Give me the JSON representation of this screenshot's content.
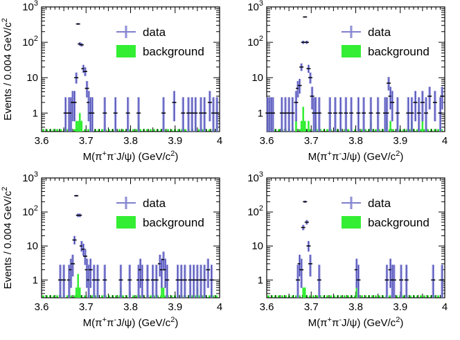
{
  "figure": {
    "colors": {
      "data": "#3333aa",
      "data_error_band": "#9999dd",
      "background": "#33ee33",
      "axis": "#000000"
    }
  },
  "chart_data": [
    {
      "type": "scatter",
      "panel": "top-left",
      "xlabel": "M(π⁺π⁻J/ψ) (GeV/c²)",
      "ylabel": "Events / 0.004 GeV/c²",
      "xlim": [
        3.6,
        4.0
      ],
      "ylim": [
        0.3,
        1000
      ],
      "yscale": "log",
      "grid": false,
      "legend_position": "top-right",
      "xticks": [
        "3.6",
        "3.7",
        "3.8",
        "3.9",
        "4"
      ],
      "yticks": [
        "1",
        "10",
        "10²",
        "10³"
      ],
      "legend": [
        {
          "label": "data",
          "marker": "error-bar"
        },
        {
          "label": "background",
          "marker": "filled-box"
        }
      ],
      "series": [
        {
          "name": "data",
          "x": [
            3.654,
            3.662,
            3.666,
            3.67,
            3.674,
            3.678,
            3.682,
            3.686,
            3.69,
            3.694,
            3.698,
            3.702,
            3.706,
            3.71,
            3.714,
            3.742,
            3.766,
            3.794,
            3.818,
            3.874,
            3.898,
            3.918,
            3.93,
            3.938,
            3.946,
            3.958,
            3.966,
            3.978,
            3.986,
            3.994
          ],
          "y": [
            1,
            1,
            1,
            2,
            2,
            10,
            330,
            90,
            85,
            18,
            15,
            5,
            2,
            1,
            1,
            1,
            1,
            1,
            1,
            1,
            2,
            1,
            1,
            1,
            1,
            1,
            1,
            2,
            1,
            1
          ]
        },
        {
          "name": "background",
          "x": [
            3.678,
            3.682,
            3.686,
            3.69,
            3.818
          ],
          "y": [
            0.6,
            0.6,
            1,
            0.6,
            0.5
          ]
        }
      ]
    },
    {
      "type": "scatter",
      "panel": "top-right",
      "xlabel": "M(π⁺π⁻J/ψ) (GeV/c²)",
      "ylabel": "",
      "xlim": [
        3.6,
        4.0
      ],
      "ylim": [
        0.3,
        1000
      ],
      "yscale": "log",
      "grid": false,
      "legend_position": "top-right",
      "xticks": [
        "3.6",
        "3.7",
        "3.8",
        "3.9",
        "4"
      ],
      "yticks": [
        "1",
        "10",
        "10²",
        "10³"
      ],
      "legend": [
        {
          "label": "data",
          "marker": "error-bar"
        },
        {
          "label": "background",
          "marker": "filled-box"
        }
      ],
      "series": [
        {
          "name": "data",
          "x": [
            3.602,
            3.606,
            3.61,
            3.614,
            3.634,
            3.642,
            3.65,
            3.658,
            3.666,
            3.67,
            3.674,
            3.678,
            3.682,
            3.686,
            3.69,
            3.694,
            3.698,
            3.702,
            3.706,
            3.71,
            3.718,
            3.742,
            3.754,
            3.766,
            3.778,
            3.79,
            3.806,
            3.818,
            3.834,
            3.85,
            3.866,
            3.87,
            3.874,
            3.878,
            3.882,
            3.894,
            3.918,
            3.926,
            3.934,
            3.942,
            3.95,
            3.958,
            3.966,
            3.978,
            3.99,
            3.994
          ],
          "y": [
            1,
            1,
            1,
            1,
            1,
            1,
            1,
            1,
            2,
            5,
            6,
            20,
            100,
            520,
            100,
            18,
            10,
            3,
            1,
            1,
            1,
            1,
            1,
            1,
            1,
            1,
            1,
            1,
            1,
            1,
            1,
            1,
            7,
            3,
            2,
            1,
            1,
            1,
            2,
            1,
            2,
            1,
            3,
            2,
            1,
            3
          ]
        },
        {
          "name": "background",
          "x": [
            3.606,
            3.666,
            3.678,
            3.682,
            3.686,
            3.694,
            3.71,
            3.834,
            3.87,
            3.878,
            3.926,
            3.95
          ],
          "y": [
            0.5,
            0.6,
            0.6,
            1.5,
            0.6,
            0.6,
            0.5,
            0.6,
            0.6,
            0.6,
            0.6,
            0.6
          ]
        }
      ]
    },
    {
      "type": "scatter",
      "panel": "bottom-left",
      "xlabel": "M(π⁺π⁻J/ψ) (GeV/c²)",
      "ylabel": "Events / 0.004 GeV/c²",
      "xlim": [
        3.6,
        4.0
      ],
      "ylim": [
        0.3,
        1000
      ],
      "yscale": "log",
      "grid": false,
      "legend_position": "top-right",
      "xticks": [
        "3.6",
        "3.7",
        "3.8",
        "3.9",
        "4"
      ],
      "yticks": [
        "1",
        "10",
        "10²",
        "10³"
      ],
      "legend": [
        {
          "label": "data",
          "marker": "error-bar"
        },
        {
          "label": "background",
          "marker": "filled-box"
        }
      ],
      "series": [
        {
          "name": "data",
          "x": [
            3.642,
            3.65,
            3.662,
            3.666,
            3.67,
            3.674,
            3.678,
            3.682,
            3.686,
            3.69,
            3.694,
            3.698,
            3.702,
            3.706,
            3.71,
            3.718,
            3.726,
            3.742,
            3.778,
            3.798,
            3.818,
            3.822,
            3.826,
            3.838,
            3.85,
            3.858,
            3.866,
            3.87,
            3.874,
            3.878,
            3.882,
            3.906,
            3.914,
            3.922,
            3.934,
            3.942,
            3.95,
            3.958,
            3.966,
            3.974,
            3.982
          ],
          "y": [
            1,
            1,
            1,
            2,
            3,
            15,
            300,
            80,
            80,
            10,
            8,
            5,
            2,
            1,
            2,
            1,
            1,
            1,
            1,
            1,
            1,
            2,
            1,
            1,
            1,
            1,
            3,
            2,
            4,
            2,
            1,
            1,
            1,
            1,
            1,
            1,
            1,
            1,
            1,
            2,
            1
          ]
        },
        {
          "name": "background",
          "x": [
            3.678,
            3.682,
            3.686,
            3.778,
            3.87,
            3.874,
            3.95
          ],
          "y": [
            0.6,
            1.5,
            0.6,
            0.6,
            0.6,
            0.6,
            0.6
          ]
        }
      ]
    },
    {
      "type": "scatter",
      "panel": "bottom-right",
      "xlabel": "M(π⁺π⁻J/ψ) (GeV/c²)",
      "ylabel": "",
      "xlim": [
        3.6,
        4.0
      ],
      "ylim": [
        0.3,
        1000
      ],
      "yscale": "log",
      "grid": false,
      "legend_position": "top-right",
      "xticks": [
        "3.6",
        "3.7",
        "3.8",
        "3.9",
        "4"
      ],
      "yticks": [
        "1",
        "10",
        "10²",
        "10³"
      ],
      "legend": [
        {
          "label": "data",
          "marker": "error-bar"
        },
        {
          "label": "background",
          "marker": "filled-box"
        }
      ],
      "series": [
        {
          "name": "data",
          "x": [
            3.67,
            3.674,
            3.678,
            3.682,
            3.686,
            3.69,
            3.694,
            3.698,
            3.718,
            3.802,
            3.806,
            3.87,
            3.878,
            3.882,
            3.886,
            3.902,
            3.914,
            3.974,
            3.994
          ],
          "y": [
            1,
            3,
            2,
            35,
            200,
            50,
            10,
            3,
            1,
            2,
            1,
            1,
            2,
            1,
            1,
            1,
            1,
            1,
            1
          ]
        },
        {
          "name": "background",
          "x": [
            3.682,
            3.686,
            3.802
          ],
          "y": [
            0.6,
            0.6,
            0.6
          ]
        }
      ]
    }
  ]
}
